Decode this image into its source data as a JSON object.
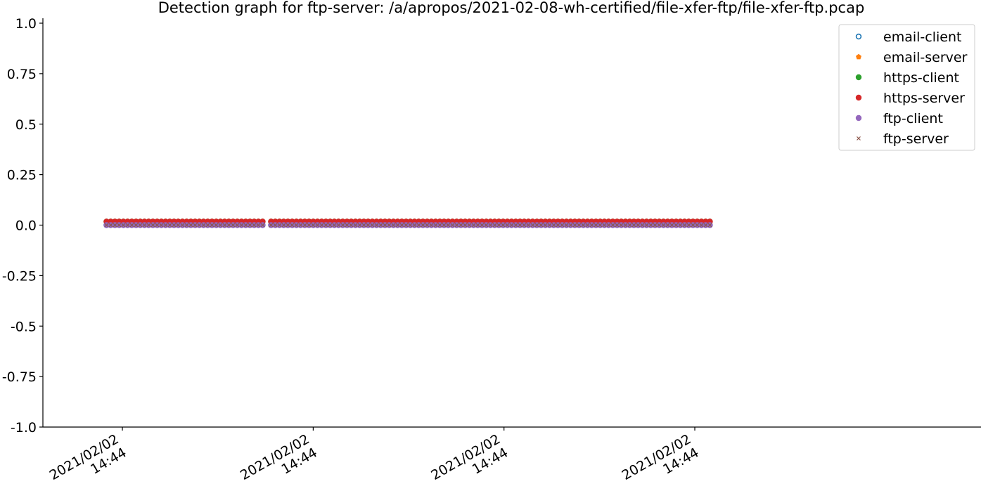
{
  "chart_data": {
    "type": "scatter",
    "title": "Detection graph for ftp-server: /a/apropos/2021-02-08-wh-certified/file-xfer-ftp/file-xfer-ftp.pcap",
    "xlabel": "",
    "ylabel": "",
    "ylim": [
      -1.0,
      1.0
    ],
    "yticks": [
      1.0,
      0.75,
      0.5,
      0.25,
      0.0,
      -0.25,
      -0.5,
      -0.75,
      -1.0
    ],
    "ytick_labels": [
      "1.0",
      "0.75",
      "0.5",
      "0.25",
      "0.0",
      "-0.25",
      "-0.5",
      "-0.75",
      "-1.0"
    ],
    "x_time_range": [
      "2021-02-02T14:44:00",
      "2021-02-02T14:44:59"
    ],
    "x_data_range": [
      "2021-02-02T14:44:04",
      "2021-02-02T14:44:42"
    ],
    "x_gap_at": "2021-02-02T14:44:14",
    "xticks": [
      "2021-02-02T14:44:05",
      "2021-02-02T14:44:17",
      "2021-02-02T14:44:29",
      "2021-02-02T14:44:41"
    ],
    "xtick_labels": [
      [
        "2021/02/02",
        "14:44"
      ],
      [
        "2021/02/02",
        "14:44"
      ],
      [
        "2021/02/02",
        "14:44"
      ],
      [
        "2021/02/02",
        "14:44"
      ]
    ],
    "grid": false,
    "legend_position": "top-right",
    "series": [
      {
        "name": "email-client",
        "marker": "circle-open",
        "color": "#1f77b4",
        "value": 0.0
      },
      {
        "name": "email-server",
        "marker": "pentagon",
        "color": "#ff7f0e",
        "value": 0.0
      },
      {
        "name": "https-client",
        "marker": "circle",
        "color": "#2ca02c",
        "value": 0.0
      },
      {
        "name": "https-server",
        "marker": "circle",
        "color": "#d62728",
        "value": 0.0
      },
      {
        "name": "ftp-client",
        "marker": "circle",
        "color": "#9467bd",
        "value": 0.0
      },
      {
        "name": "ftp-server",
        "marker": "x",
        "color": "#8c564b",
        "value": 0.0
      }
    ]
  }
}
